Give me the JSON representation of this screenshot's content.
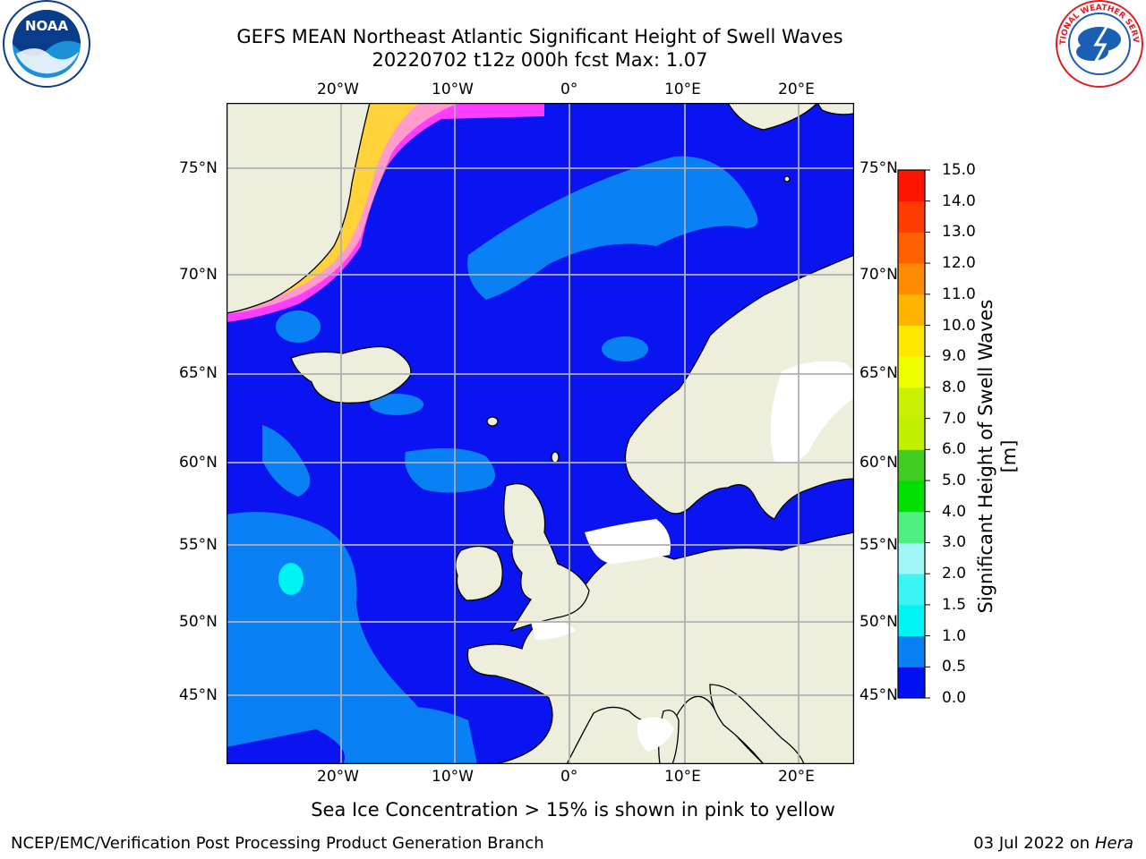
{
  "header": {
    "title_line1": "GEFS MEAN Northeast Atlantic Significant Height of Swell Waves",
    "title_line2": "20220702 t12z 000h fcst   Max: 1.07"
  },
  "logos": {
    "left": {
      "text": "NOAA",
      "ring_text": "NATIONAL OCEANIC AND ATMOSPHERIC ADMINISTRATION · U.S. DEPARTMENT OF COMMERCE",
      "colors": [
        "#0a3c8c",
        "#1e90d8",
        "#ffffff"
      ]
    },
    "right": {
      "ring_text": "NATIONAL WEATHER SERVICE",
      "colors": [
        "#e21b23",
        "#1a5fb4",
        "#ffffff"
      ]
    }
  },
  "map": {
    "region": "Northeast Atlantic",
    "lon_range": [
      -30,
      25
    ],
    "lat_range": [
      41,
      78
    ],
    "longitude_ticks": [
      "20°W",
      "10°W",
      "0°",
      "10°E",
      "20°E"
    ],
    "latitude_ticks": [
      "75°N",
      "70°N",
      "65°N",
      "60°N",
      "55°N",
      "50°N",
      "45°N"
    ],
    "colors": {
      "land": "#eeeedd",
      "ocean_low": "#0a14f0",
      "ocean_mid": "#0a80f5",
      "ocean_high": "#00f2f2",
      "ice_low": "#ff3cff",
      "ice_mid": "#ff9ccc",
      "ice_high": "#ffd23a",
      "grid": "#b0b0b0"
    }
  },
  "colorbar": {
    "label": "Significant Height of Swell Waves [m]",
    "tick_labels": [
      "0.0",
      "0.5",
      "1.0",
      "1.5",
      "2.0",
      "3.0",
      "4.0",
      "5.0",
      "6.0",
      "7.0",
      "8.0",
      "9.0",
      "10.0",
      "11.0",
      "12.0",
      "13.0",
      "14.0",
      "15.0"
    ],
    "segment_colors": [
      "#0010f0",
      "#0a80f5",
      "#00f4f4",
      "#3cf4f4",
      "#a0f6f6",
      "#50f080",
      "#00e000",
      "#40cc20",
      "#c0f000",
      "#c8f000",
      "#f0ff00",
      "#ffe800",
      "#ffb400",
      "#ff8c00",
      "#ff6000",
      "#ff3c00",
      "#ff1400"
    ]
  },
  "footer": {
    "ice_note": "Sea Ice Concentration > 15% is shown in pink to yellow",
    "credit_left": "NCEP/EMC/Verification Post Processing Product Generation Branch",
    "date": "03 Jul 2022 on ",
    "host": "Hera"
  }
}
